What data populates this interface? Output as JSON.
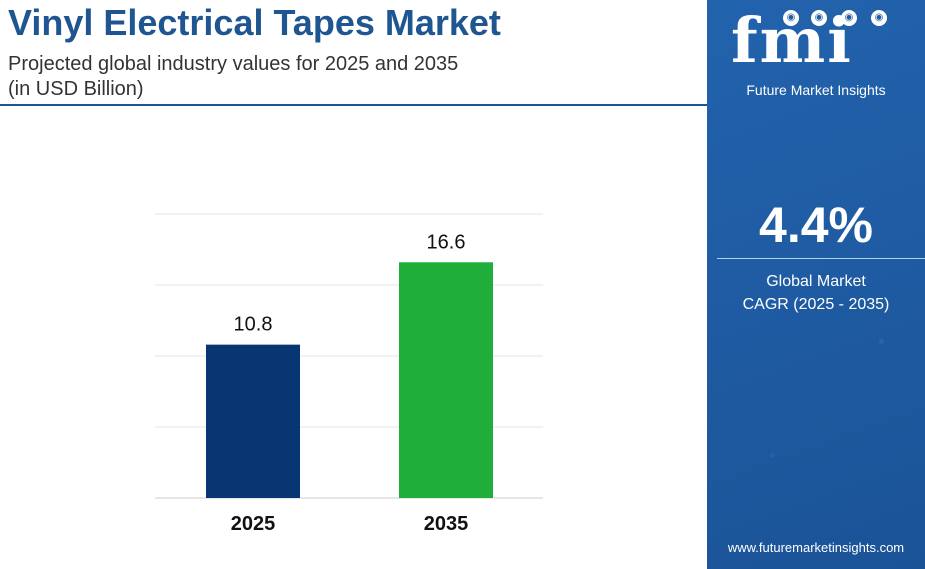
{
  "header": {
    "title": "Vinyl Electrical Tapes Market",
    "subtitle_line1": "Projected global industry values for 2025 and 2035",
    "subtitle_line2": "(in USD Billion)"
  },
  "side_panel": {
    "logo_text": "fmi",
    "logo_subtext": "Future Market Insights",
    "cagr_value": "4.4%",
    "cagr_label_line1": "Global Market",
    "cagr_label_line2": "CAGR (2025 - 2035)",
    "website": "www.futuremarketinsights.com",
    "background_color": "#1f5da6"
  },
  "chart_data": {
    "type": "bar",
    "categories": [
      "2025",
      "2035"
    ],
    "values": [
      10.8,
      16.6
    ],
    "data_labels": [
      "10.8",
      "16.6"
    ],
    "bar_colors": [
      "#073673",
      "#1fae3a"
    ],
    "ylim": [
      0,
      20
    ],
    "grid": true,
    "title": "",
    "xlabel": "",
    "ylabel": ""
  }
}
